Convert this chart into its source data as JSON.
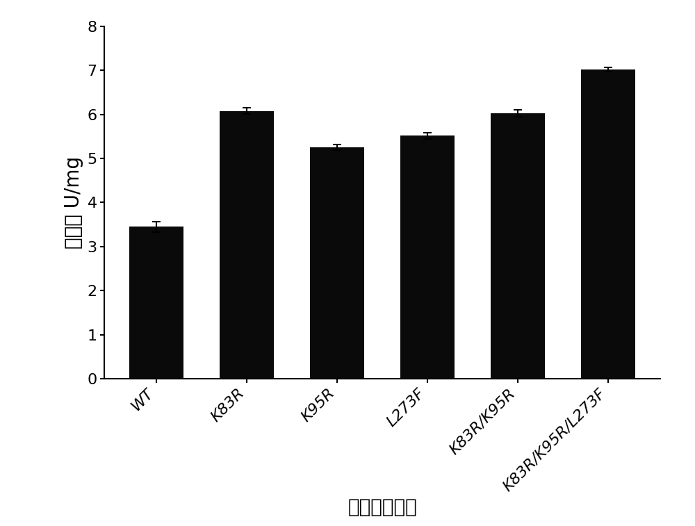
{
  "categories": [
    "WT",
    "K83R",
    "K95R",
    "L273F",
    "K83R/K95R",
    "K83R/K95R/L273F"
  ],
  "values": [
    3.45,
    6.08,
    5.25,
    5.52,
    6.02,
    7.02
  ],
  "errors": [
    0.12,
    0.07,
    0.06,
    0.07,
    0.08,
    0.05
  ],
  "bar_color": "#0a0a0a",
  "bar_width": 0.6,
  "ylabel": "比酶活 U/mg",
  "xlabel": "亲本和突变株",
  "ylim": [
    0,
    8
  ],
  "yticks": [
    0,
    1,
    2,
    3,
    4,
    5,
    6,
    7,
    8
  ],
  "background_color": "#ffffff",
  "ylabel_fontsize": 20,
  "xlabel_fontsize": 20,
  "tick_fontsize": 16,
  "xtick_rotation": 45,
  "figure_width": 10.0,
  "figure_height": 7.57
}
